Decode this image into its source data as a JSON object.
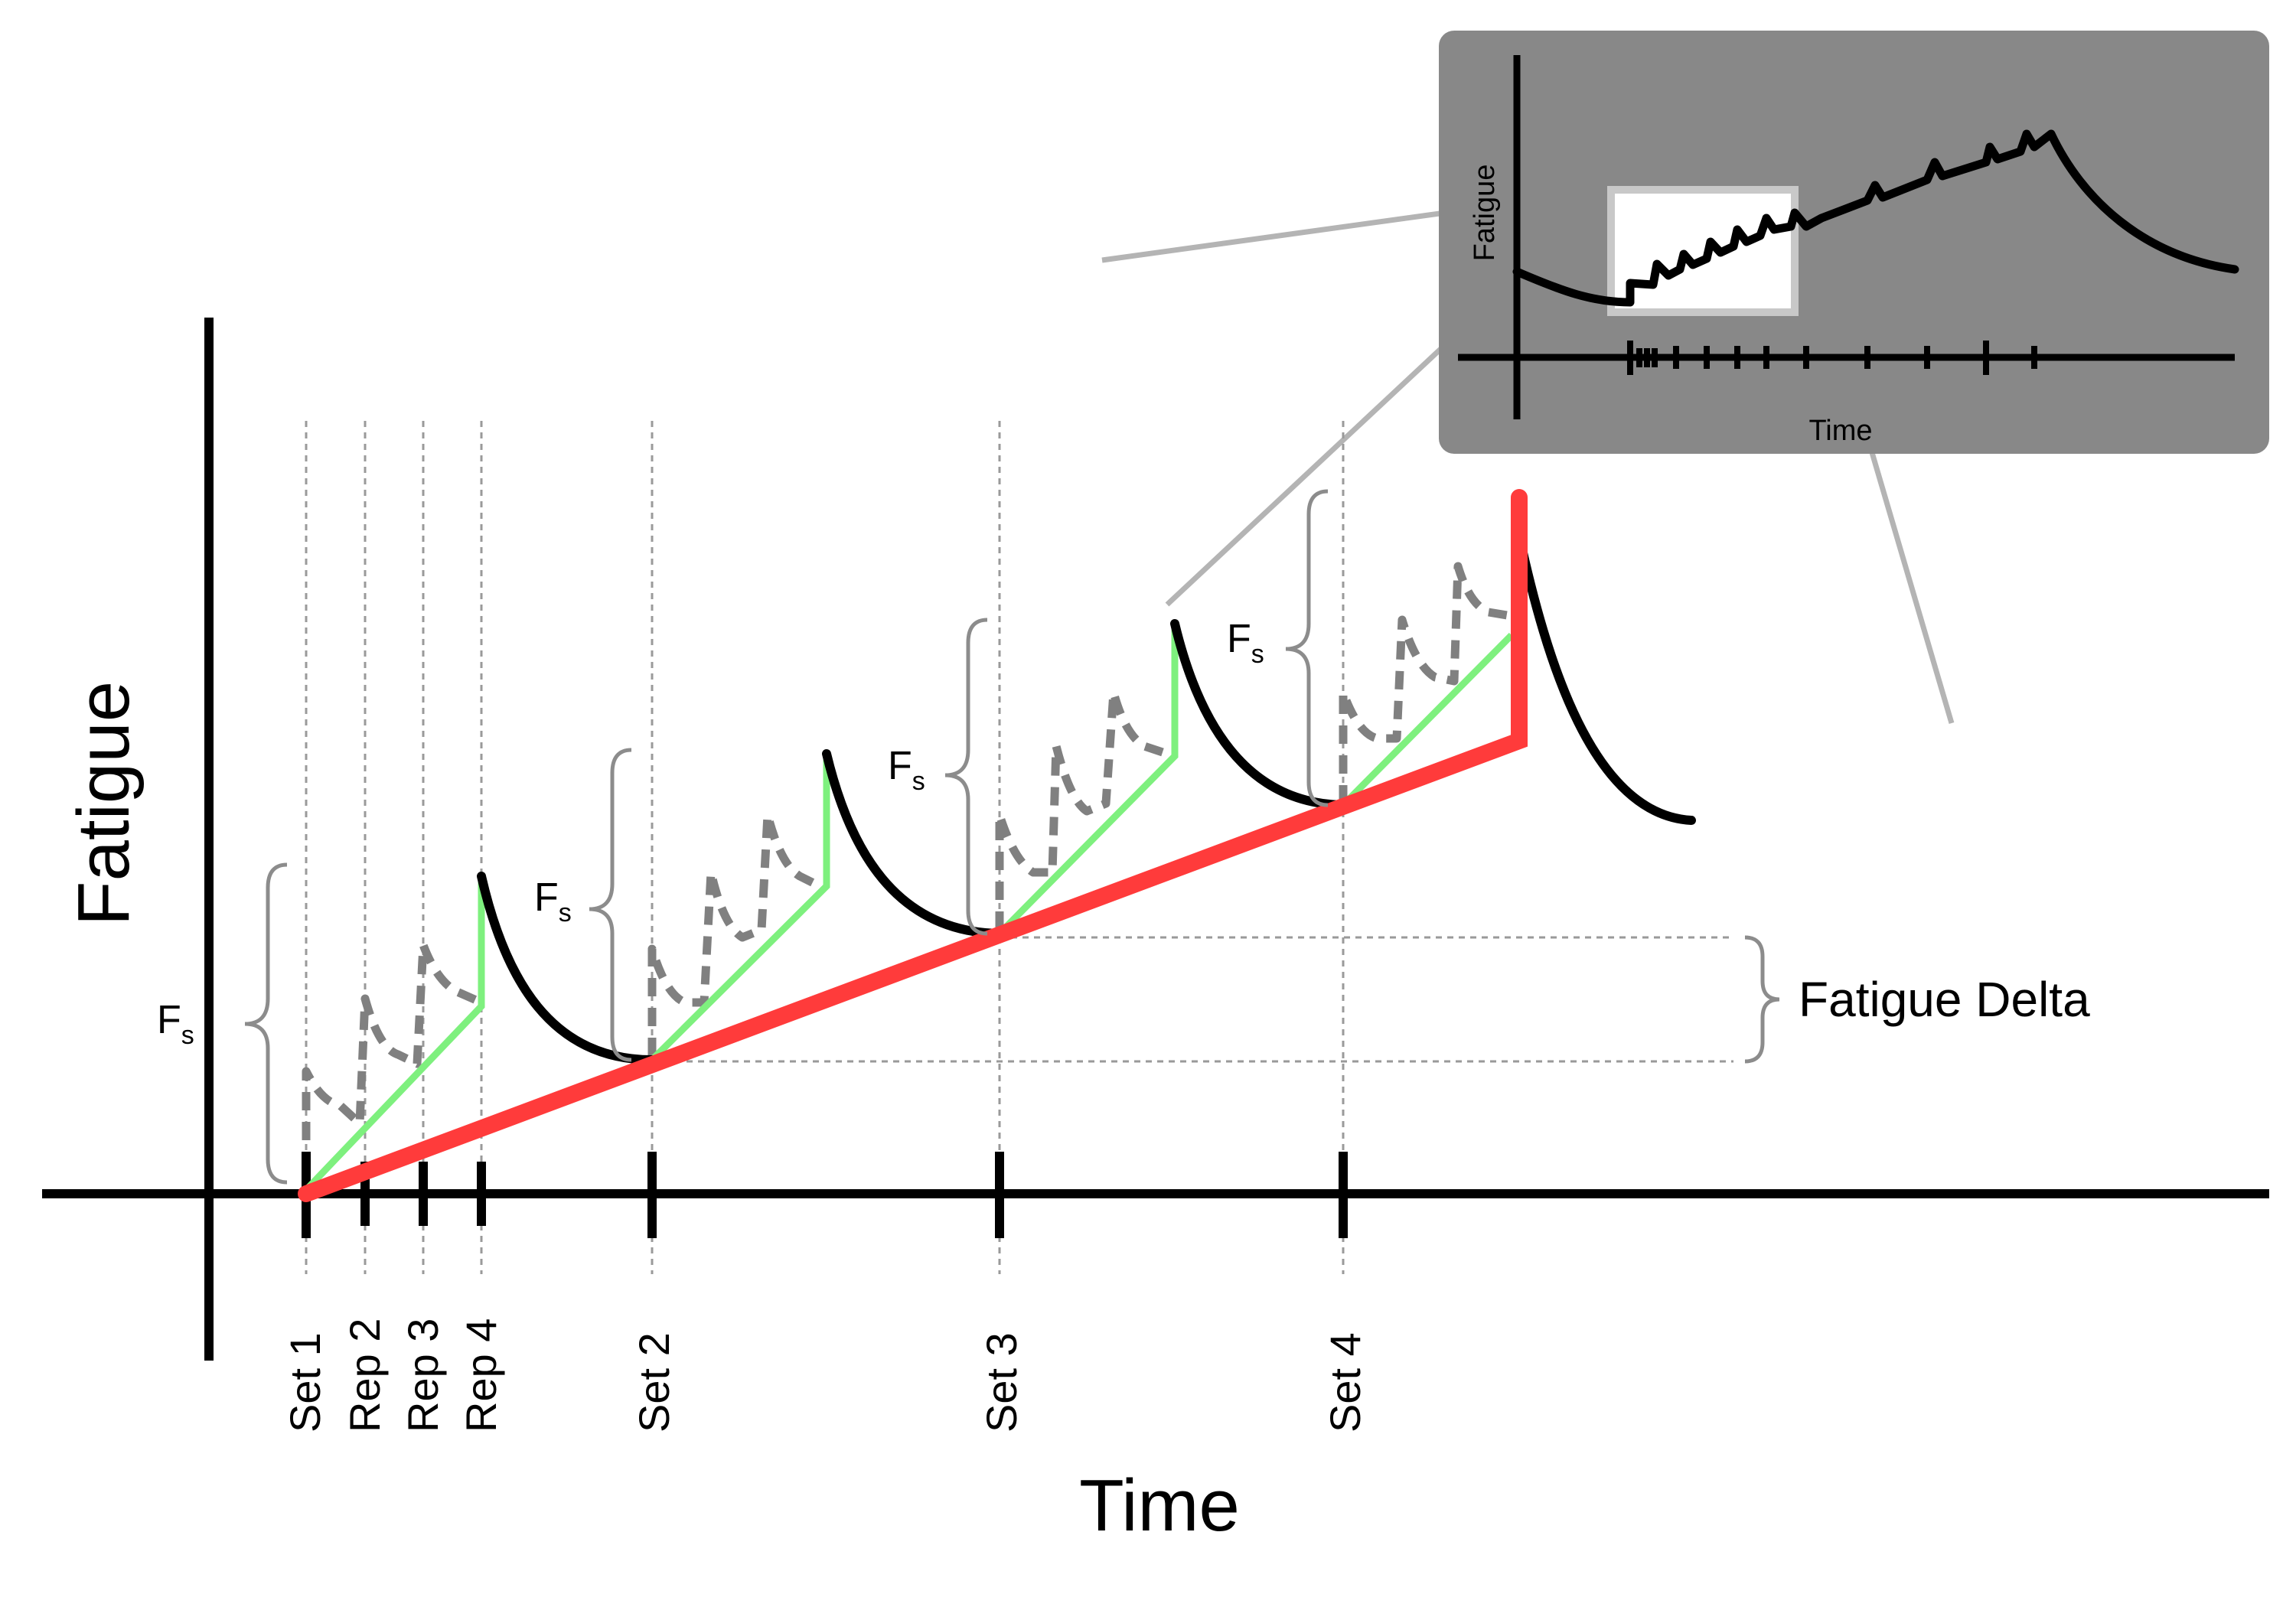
{
  "labels": {
    "y_axis": "Fatigue",
    "x_axis": "Time",
    "ticks": [
      "Set 1",
      "Rep 2",
      "Rep 3",
      "Rep 4",
      "Set 2",
      "Set 3",
      "Set 4"
    ],
    "fs_main": "F",
    "fs_sub": "s",
    "fatigue_delta": "Fatigue Delta"
  },
  "inset": {
    "y_axis": "Fatigue",
    "x_axis": "Time"
  },
  "colors": {
    "axis": "#000000",
    "recovery_curve": "#000000",
    "rep_dashes": "#808080",
    "set_trend_line": "#7ef07e",
    "overall_trend_line": "#ff3b3b",
    "brace": "#8c8c8c",
    "guide_lines": "#9a9a9a",
    "inset_background": "#888888",
    "zoom_lines": "#b4b4b4"
  }
}
